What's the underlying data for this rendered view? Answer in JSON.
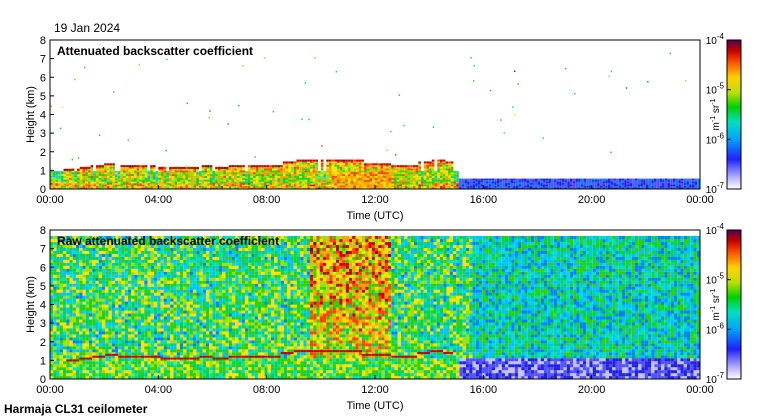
{
  "date": "19 Jan 2024",
  "footer": "Harmaja CL31 ceilometer",
  "chart_data": [
    {
      "type": "heatmap",
      "title": "Attenuated backscatter coefficient",
      "xlabel": "Time (UTC)",
      "ylabel": "Height (km)",
      "x_ticks": [
        "00:00",
        "04:00",
        "08:00",
        "12:00",
        "16:00",
        "20:00",
        "00:00"
      ],
      "xlim": [
        0,
        24
      ],
      "ylim": [
        0,
        8
      ],
      "y_ticks": [
        0,
        1,
        2,
        3,
        4,
        5,
        6,
        7,
        8
      ],
      "colorbar": {
        "label_base": "m",
        "label_exp1": "-1",
        "label_mid": " sr",
        "label_exp2": "-1",
        "scale": "log",
        "range": [
          1e-07,
          0.0001
        ],
        "ticks": [
          {
            "base": "10",
            "exp": "-7"
          },
          {
            "base": "10",
            "exp": "-6"
          },
          {
            "base": "10",
            "exp": "-5"
          },
          {
            "base": "10",
            "exp": "-4"
          }
        ]
      },
      "cloud_base_km": [
        {
          "t": 0.0,
          "h": null
        },
        {
          "t": 0.5,
          "h": 1.0
        },
        {
          "t": 1.0,
          "h": 1.1
        },
        {
          "t": 1.5,
          "h": 1.2
        },
        {
          "t": 2.0,
          "h": 1.3
        },
        {
          "t": 2.5,
          "h": 1.2
        },
        {
          "t": 3.0,
          "h": 1.2
        },
        {
          "t": 3.5,
          "h": 1.2
        },
        {
          "t": 4.0,
          "h": 1.1
        },
        {
          "t": 4.5,
          "h": 1.1
        },
        {
          "t": 5.0,
          "h": 1.1
        },
        {
          "t": 5.5,
          "h": 1.2
        },
        {
          "t": 6.0,
          "h": 1.1
        },
        {
          "t": 6.5,
          "h": 1.2
        },
        {
          "t": 7.0,
          "h": 1.2
        },
        {
          "t": 7.5,
          "h": 1.2
        },
        {
          "t": 8.0,
          "h": 1.2
        },
        {
          "t": 8.5,
          "h": 1.4
        },
        {
          "t": 9.0,
          "h": 1.5
        },
        {
          "t": 9.5,
          "h": 1.5
        },
        {
          "t": 10.0,
          "h": 1.5
        },
        {
          "t": 10.5,
          "h": 1.5
        },
        {
          "t": 11.0,
          "h": 1.5
        },
        {
          "t": 11.5,
          "h": 1.3
        },
        {
          "t": 12.0,
          "h": 1.3
        },
        {
          "t": 12.5,
          "h": 1.2
        },
        {
          "t": 13.0,
          "h": 1.2
        },
        {
          "t": 13.5,
          "h": 1.4
        },
        {
          "t": 14.0,
          "h": 1.5
        },
        {
          "t": 14.5,
          "h": 1.4
        }
      ],
      "background_top_km": 0.5
    },
    {
      "type": "heatmap",
      "title": "Raw attenuated backscatter coefficient",
      "xlabel": "Time (UTC)",
      "ylabel": "Height (km)",
      "x_ticks": [
        "00:00",
        "04:00",
        "08:00",
        "12:00",
        "16:00",
        "20:00",
        "00:00"
      ],
      "xlim": [
        0,
        24
      ],
      "ylim": [
        0,
        8
      ],
      "y_ticks": [
        0,
        1,
        2,
        3,
        4,
        5,
        6,
        7,
        8
      ],
      "data_top_km": 7.6,
      "colorbar": {
        "label_base": "m",
        "label_exp1": "-1",
        "label_mid": " sr",
        "label_exp2": "-1",
        "scale": "log",
        "range": [
          1e-07,
          0.0001
        ],
        "ticks": [
          {
            "base": "10",
            "exp": "-7"
          },
          {
            "base": "10",
            "exp": "-6"
          },
          {
            "base": "10",
            "exp": "-5"
          },
          {
            "base": "10",
            "exp": "-4"
          }
        ]
      }
    }
  ]
}
